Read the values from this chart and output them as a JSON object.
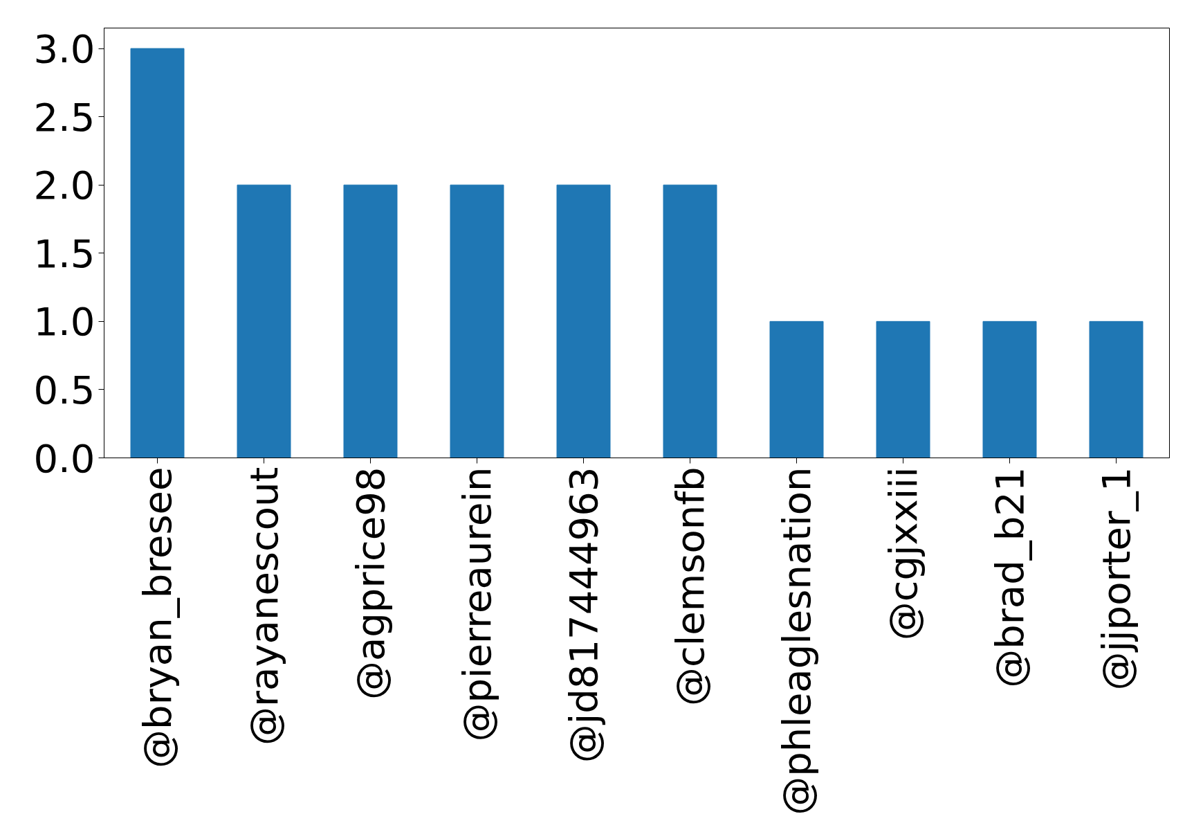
{
  "chart_data": {
    "type": "bar",
    "categories": [
      "@bryan_bresee",
      "@rayanescout",
      "@agprice98",
      "@pierreaurein",
      "@jd817444963",
      "@clemsonfb",
      "@phleaglesnation",
      "@cgjxxiii",
      "@brad_b21",
      "@jjporter_1"
    ],
    "values": [
      3,
      2,
      2,
      2,
      2,
      2,
      1,
      1,
      1,
      1
    ],
    "color": "#1f77b4",
    "ylim": [
      0,
      3.15
    ],
    "yticks": [
      {
        "value": 0,
        "label": "0.0"
      },
      {
        "value": 0.5,
        "label": "0.5"
      },
      {
        "value": 1,
        "label": "1.0"
      },
      {
        "value": 1.5,
        "label": "1.5"
      },
      {
        "value": 2,
        "label": "2.0"
      },
      {
        "value": 2.5,
        "label": "2.5"
      },
      {
        "value": 3,
        "label": "3.0"
      }
    ],
    "grid": false
  }
}
